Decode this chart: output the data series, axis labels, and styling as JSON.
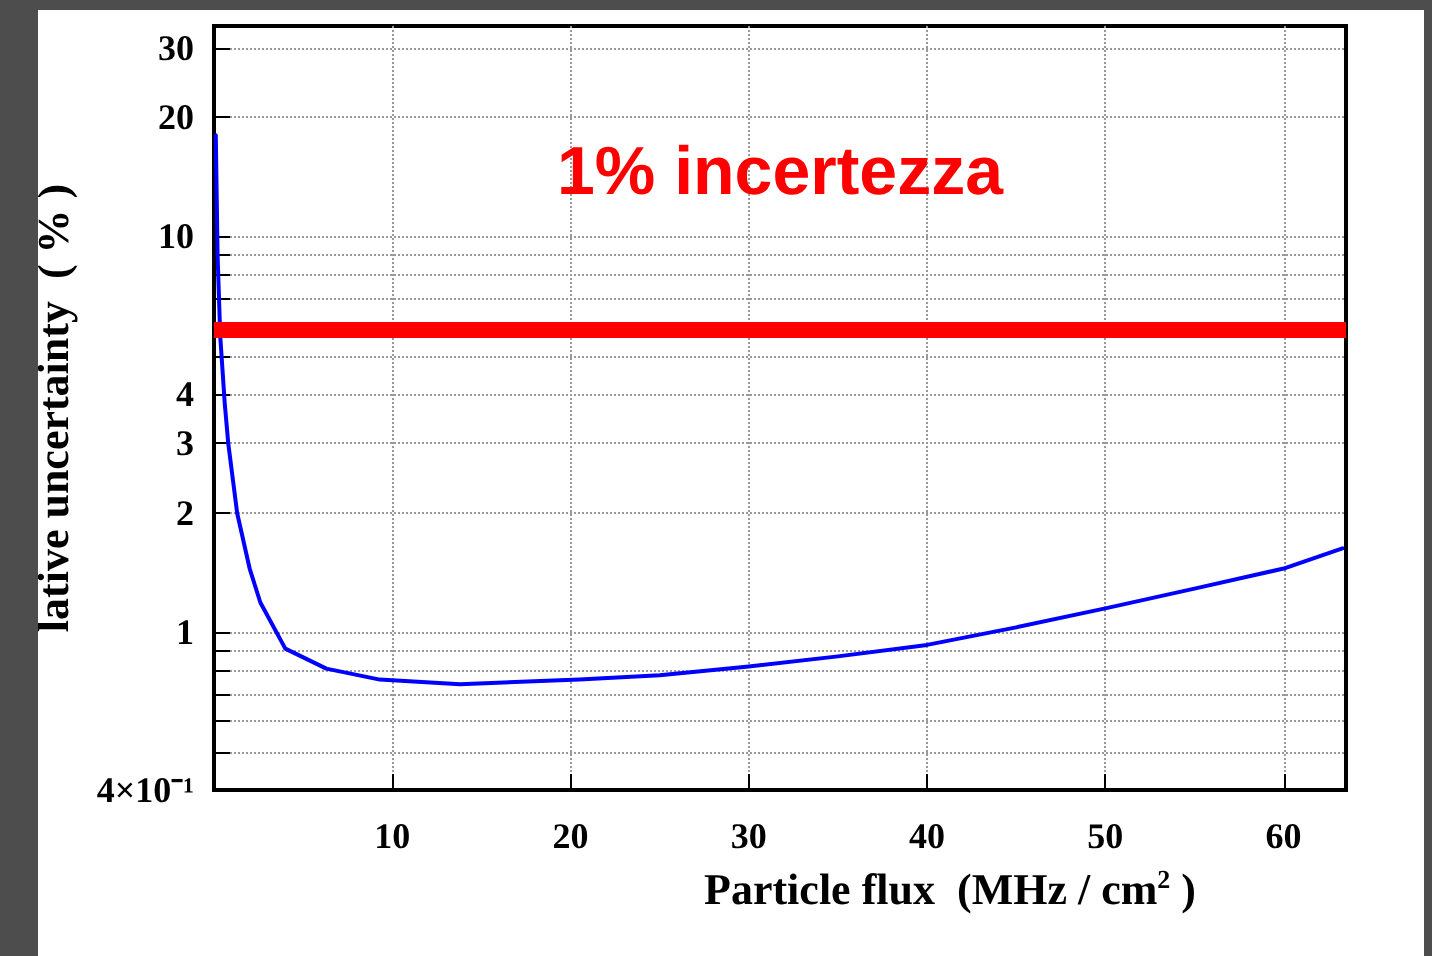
{
  "chart_data": {
    "type": "line",
    "xlabel": "Particle flux  (MHz / cm$^{2}$ )",
    "ylabel": "lative uncertainty  ( % )",
    "log": "y",
    "grid": true,
    "line_style": "dotted",
    "marker": "none",
    "xlim": [
      0,
      63.5
    ],
    "xticks": [
      10,
      20,
      30,
      40,
      50,
      60
    ],
    "ylim": [
      0.4,
      34
    ],
    "yticks": [
      {
        "value": 0.4,
        "label": "4×10⁻¹"
      },
      {
        "value": 0.5,
        "label": null
      },
      {
        "value": 0.6,
        "label": null
      },
      {
        "value": 0.7,
        "label": null
      },
      {
        "value": 0.8,
        "label": null
      },
      {
        "value": 0.9,
        "label": null
      },
      1,
      2,
      3,
      4,
      {
        "value": 5,
        "label": null
      },
      {
        "value": 6,
        "label": null
      },
      {
        "value": 7,
        "label": null
      },
      {
        "value": 8,
        "label": null
      },
      {
        "value": 9,
        "label": null
      },
      10,
      20,
      30
    ],
    "series": [
      {
        "color": "#0000ff",
        "line_style": "solid",
        "x": [
          0.1,
          0.2,
          0.35,
          0.6,
          0.8,
          1.3,
          2,
          2.6,
          4,
          6.3,
          9.3,
          13.8,
          20.5,
          25,
          30,
          35,
          40,
          45,
          50,
          55,
          60,
          63.3
        ],
        "values": [
          18,
          9,
          5.6,
          3.8,
          3,
          2,
          1.45,
          1.19,
          0.91,
          0.81,
          0.76,
          0.74,
          0.76,
          0.78,
          0.82,
          0.87,
          0.93,
          1.03,
          1.15,
          1.29,
          1.45,
          1.63
        ]
      }
    ],
    "ref_lines": [
      {
        "axis": "y",
        "value": 5.8,
        "label": "1% incertezza",
        "color": "#ff0000"
      }
    ]
  }
}
